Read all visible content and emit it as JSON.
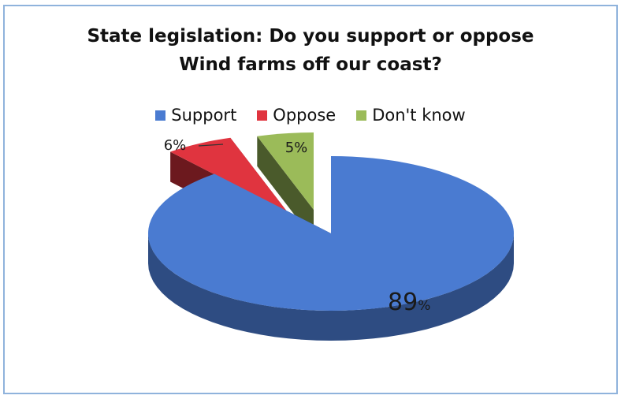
{
  "chart_data": {
    "type": "pie",
    "title_lines": [
      "State legislation: Do you support or oppose",
      "Wind farms off our coast?"
    ],
    "legend_position": "top",
    "slices": [
      {
        "label": "Support",
        "value": 89,
        "display": "89",
        "unit": "%",
        "color": "#4a7bd1",
        "exploded": false
      },
      {
        "label": "Oppose",
        "value": 6,
        "display": "6%",
        "color": "#e0343f",
        "exploded": true
      },
      {
        "label": "Don't know",
        "value": 5,
        "display": "5%",
        "color": "#9bbb59",
        "exploded": true
      }
    ]
  }
}
